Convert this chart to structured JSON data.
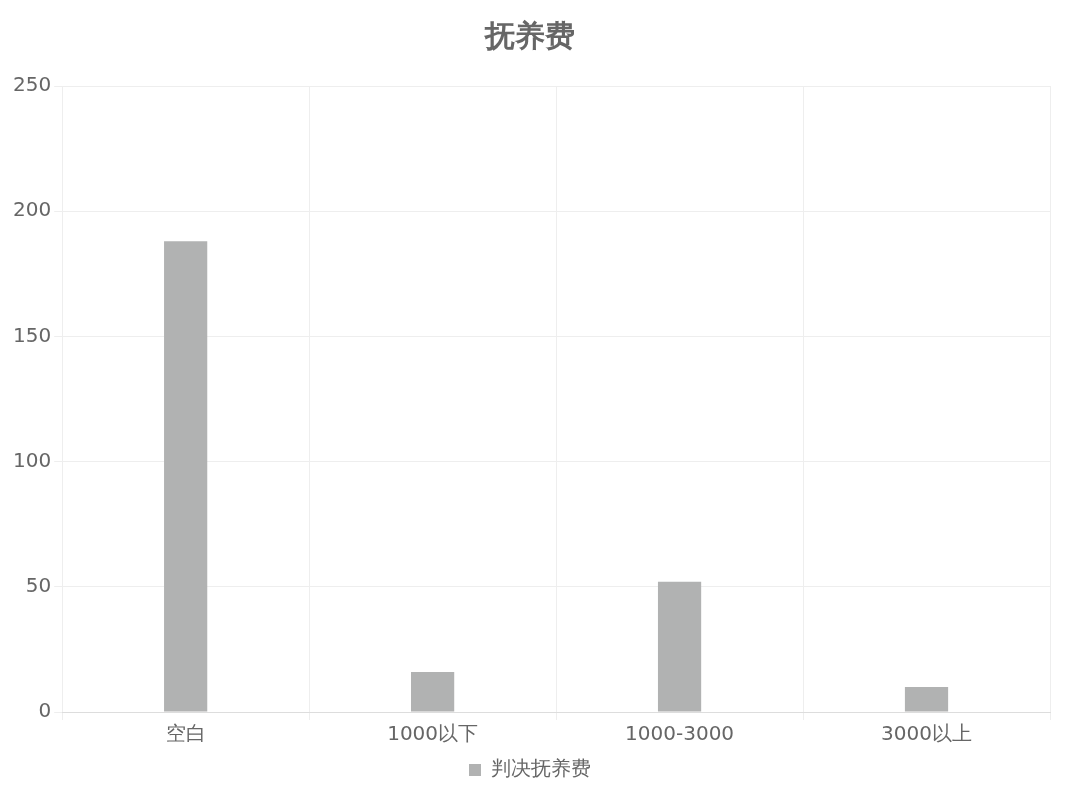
{
  "chart_data": {
    "type": "bar",
    "title": "抚养费",
    "categories": [
      "空白",
      "1000以下",
      "1000-3000",
      "3000以上"
    ],
    "series": [
      {
        "name": "判决抚养费",
        "color": "#b1b2b2",
        "values": [
          188,
          16,
          52,
          10
        ]
      }
    ],
    "ylim": [
      0,
      250
    ],
    "yticks": [
      0,
      50,
      100,
      150,
      200,
      250
    ],
    "grid": true,
    "legend": "bottom"
  }
}
